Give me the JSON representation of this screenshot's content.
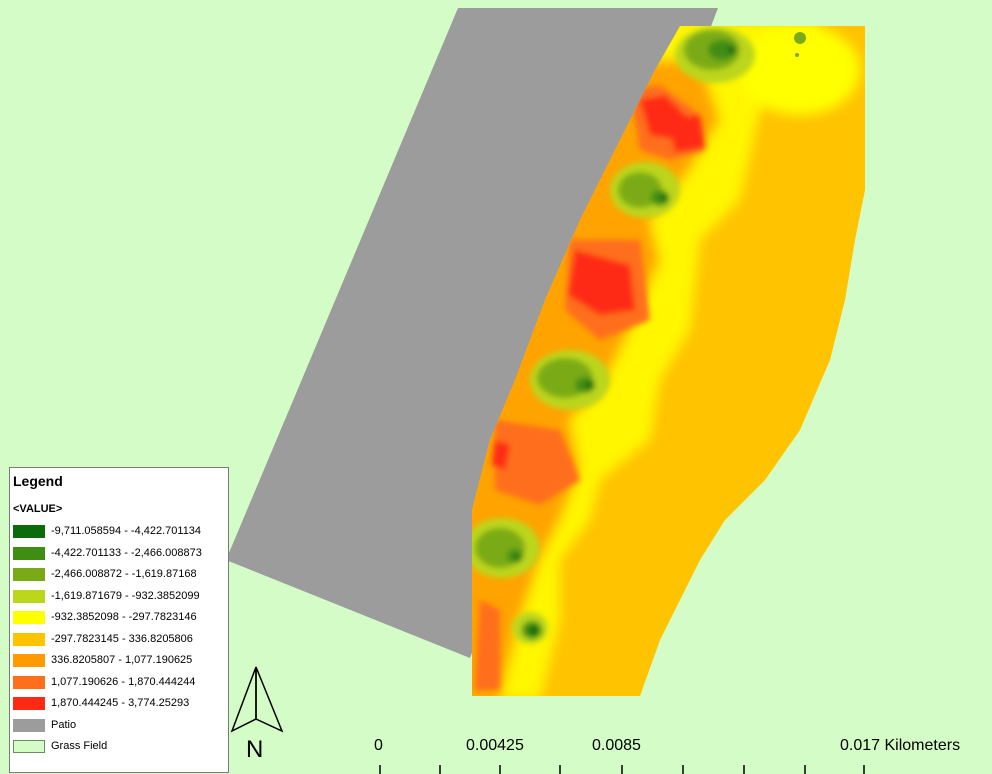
{
  "map": {
    "background_color": "#d3fcc6",
    "patio_color": "#9c9c9c",
    "raster_base_color": "#ffc300"
  },
  "legend": {
    "title": "Legend",
    "field": "<VALUE>",
    "items": [
      {
        "label": "-9,711.058594 - -4,422.701134",
        "color": "#0b6b0b"
      },
      {
        "label": "-4,422.701133 - -2,466.008873",
        "color": "#3f8d12"
      },
      {
        "label": "-2,466.008872 - -1,619.87168",
        "color": "#7aab17"
      },
      {
        "label": "-1,619.871679 - -932.3852099",
        "color": "#bcd61c"
      },
      {
        "label": "-932.3852098 - -297.7823146",
        "color": "#ffff00"
      },
      {
        "label": "-297.7823145 - 336.8205806",
        "color": "#ffc300"
      },
      {
        "label": "336.8205807 - 1,077.190625",
        "color": "#ff9a00"
      },
      {
        "label": "1,077.190626 - 1,870.444244",
        "color": "#ff6e1a"
      },
      {
        "label": "1,870.444245 - 3,774.25293",
        "color": "#ff2a14"
      },
      {
        "label": "Patio",
        "color": "#9c9c9c"
      },
      {
        "label": "Grass Field",
        "color": "#d3fcc6"
      }
    ]
  },
  "north_arrow": {
    "letter": "N"
  },
  "scale_bar": {
    "labels": [
      "0",
      "0.00425",
      "0.0085",
      "0.017 Kilometers"
    ]
  }
}
